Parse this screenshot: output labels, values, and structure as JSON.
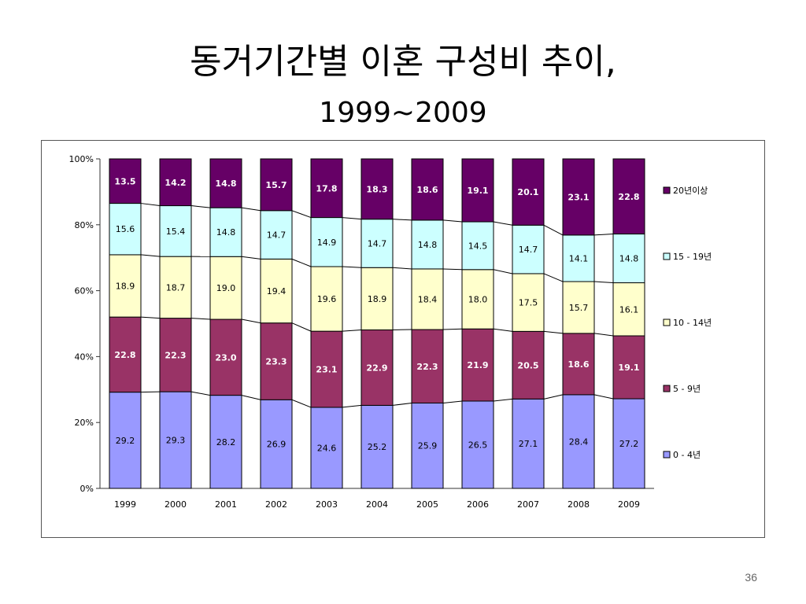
{
  "slide": {
    "title": "동거기간별 이혼 구성비 추이,",
    "subtitle": "1999~2009",
    "page_number": "36"
  },
  "chart_data": {
    "type": "bar",
    "stacked": true,
    "percent_stacked": true,
    "categories": [
      "1999",
      "2000",
      "2001",
      "2002",
      "2003",
      "2004",
      "2005",
      "2006",
      "2007",
      "2008",
      "2009"
    ],
    "series": [
      {
        "name": "0 - 4년",
        "color": "#9999ff",
        "values": [
          29.2,
          29.3,
          28.2,
          26.9,
          24.6,
          25.2,
          25.9,
          26.5,
          27.1,
          28.4,
          27.2
        ],
        "labels": [
          "29.2",
          "29.3",
          "28.2",
          "26.9",
          "24.6",
          "25.2",
          "25.9",
          "26.5",
          "27.1",
          "28.4",
          "27.2"
        ]
      },
      {
        "name": "5 - 9년",
        "color": "#993366",
        "values": [
          22.8,
          22.3,
          23.0,
          23.3,
          23.1,
          22.9,
          22.3,
          21.9,
          20.5,
          18.6,
          19.1
        ],
        "labels": [
          "22.8",
          "22.3",
          "23.0",
          "23.3",
          "23.1",
          "22.9",
          "22.3",
          "21.9",
          "20.5",
          "18.6",
          "19.1"
        ]
      },
      {
        "name": "10 - 14년",
        "color": "#ffffcc",
        "values": [
          18.9,
          18.7,
          19.0,
          19.4,
          19.6,
          18.9,
          18.4,
          18.0,
          17.5,
          15.7,
          16.1
        ],
        "labels": [
          "18.9",
          "18.7",
          "19.0",
          "19.4",
          "19.6",
          "18.9",
          "18.4",
          "18.0",
          "17.5",
          "15.7",
          "16.1"
        ]
      },
      {
        "name": "15 - 19년",
        "color": "#ccffff",
        "values": [
          15.6,
          15.4,
          14.8,
          14.7,
          14.9,
          14.7,
          14.8,
          14.5,
          14.7,
          14.1,
          14.8
        ],
        "labels": [
          "15.6",
          "15.4",
          "14.8",
          "14.7",
          "14.9",
          "14.7",
          "14.8",
          "14.5",
          "14.7",
          "14.1",
          "14.8"
        ]
      },
      {
        "name": "20년이상",
        "color": "#660066",
        "values": [
          13.5,
          14.2,
          14.8,
          15.7,
          17.8,
          18.3,
          18.6,
          19.1,
          20.1,
          23.1,
          22.8
        ],
        "labels": [
          "13.5",
          "14.2",
          "14.8",
          "15.7",
          "17.8",
          "18.3",
          "18.6",
          "19.1",
          "20.1",
          "23.1",
          "22.8"
        ]
      }
    ],
    "ylim": [
      0,
      100
    ],
    "yticks": [
      "0%",
      "20%",
      "40%",
      "60%",
      "80%",
      "100%"
    ],
    "ytick_values": [
      0,
      20,
      40,
      60,
      80,
      100
    ],
    "series_lines": true,
    "grid": false,
    "legend_position": "right",
    "legend_order": [
      "20년이상",
      "15 - 19년",
      "10 - 14년",
      "5 - 9년",
      "0 - 4년"
    ]
  }
}
